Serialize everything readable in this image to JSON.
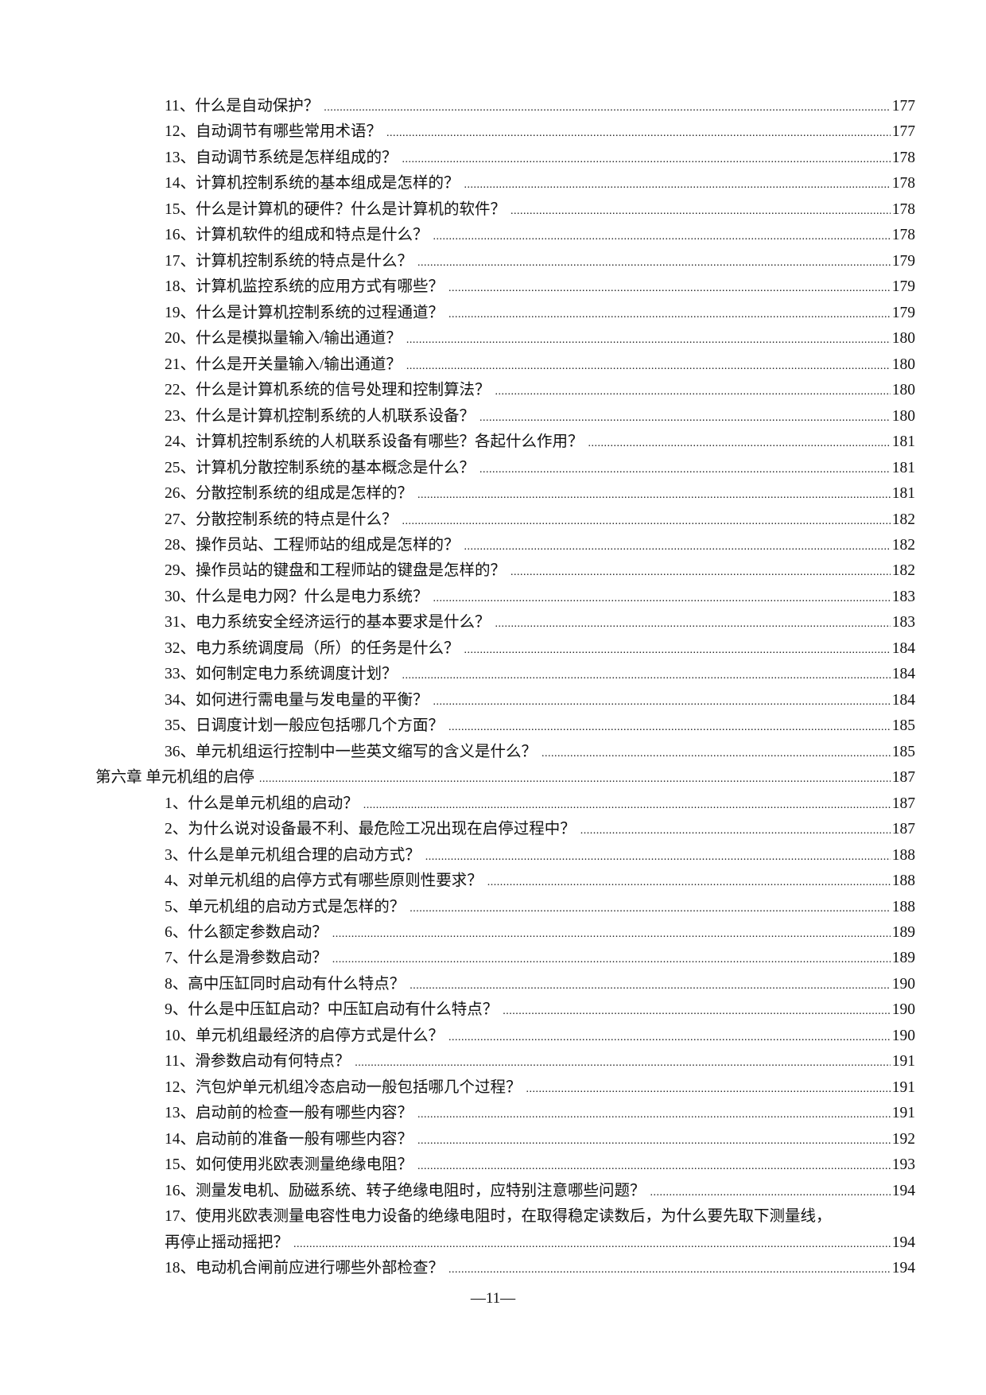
{
  "entries": [
    {
      "type": "item",
      "text": "11、什么是自动保护？",
      "page": "177"
    },
    {
      "type": "item",
      "text": "12、自动调节有哪些常用术语？",
      "page": "177"
    },
    {
      "type": "item",
      "text": "13、自动调节系统是怎样组成的？",
      "page": "178"
    },
    {
      "type": "item",
      "text": "14、计算机控制系统的基本组成是怎样的？",
      "page": "178"
    },
    {
      "type": "item",
      "text": "15、什么是计算机的硬件？什么是计算机的软件？",
      "page": "178"
    },
    {
      "type": "item",
      "text": "16、计算机软件的组成和特点是什么？",
      "page": "178"
    },
    {
      "type": "item",
      "text": "17、计算机控制系统的特点是什么？",
      "page": "179"
    },
    {
      "type": "item",
      "text": "18、计算机监控系统的应用方式有哪些？",
      "page": "179"
    },
    {
      "type": "item",
      "text": "19、什么是计算机控制系统的过程通道？",
      "page": "179"
    },
    {
      "type": "item",
      "text": "20、什么是模拟量输入/输出通道？",
      "page": "180"
    },
    {
      "type": "item",
      "text": "21、什么是开关量输入/输出通道？",
      "page": "180"
    },
    {
      "type": "item",
      "text": "22、什么是计算机系统的信号处理和控制算法？",
      "page": "180"
    },
    {
      "type": "item",
      "text": "23、什么是计算机控制系统的人机联系设备？",
      "page": "180"
    },
    {
      "type": "item",
      "text": "24、计算机控制系统的人机联系设备有哪些？各起什么作用？",
      "page": "181"
    },
    {
      "type": "item",
      "text": "25、计算机分散控制系统的基本概念是什么？",
      "page": "181"
    },
    {
      "type": "item",
      "text": "26、分散控制系统的组成是怎样的？",
      "page": "181"
    },
    {
      "type": "item",
      "text": "27、分散控制系统的特点是什么？",
      "page": "182"
    },
    {
      "type": "item",
      "text": "28、操作员站、工程师站的组成是怎样的？",
      "page": "182"
    },
    {
      "type": "item",
      "text": "29、操作员站的键盘和工程师站的键盘是怎样的？",
      "page": "182"
    },
    {
      "type": "item",
      "text": "30、什么是电力网？什么是电力系统？",
      "page": "183"
    },
    {
      "type": "item",
      "text": "31、电力系统安全经济运行的基本要求是什么？",
      "page": "183"
    },
    {
      "type": "item",
      "text": "32、电力系统调度局（所）的任务是什么？",
      "page": "184"
    },
    {
      "type": "item",
      "text": "33、如何制定电力系统调度计划？",
      "page": "184"
    },
    {
      "type": "item",
      "text": "34、如何进行需电量与发电量的平衡？",
      "page": "184"
    },
    {
      "type": "item",
      "text": "35、日调度计划一般应包括哪几个方面？",
      "page": "185"
    },
    {
      "type": "item",
      "text": "36、单元机组运行控制中一些英文缩写的含义是什么？",
      "page": "185"
    },
    {
      "type": "chapter",
      "text": "第六章  单元机组的启停",
      "page": "187"
    },
    {
      "type": "item",
      "text": "1、什么是单元机组的启动？",
      "page": "187"
    },
    {
      "type": "item",
      "text": "2、为什么说对设备最不利、最危险工况出现在启停过程中？",
      "page": "187"
    },
    {
      "type": "item",
      "text": "3、什么是单元机组合理的启动方式？",
      "page": "188"
    },
    {
      "type": "item",
      "text": "4、对单元机组的启停方式有哪些原则性要求？",
      "page": "188"
    },
    {
      "type": "item",
      "text": "5、单元机组的启动方式是怎样的？",
      "page": "188"
    },
    {
      "type": "item",
      "text": "6、什么额定参数启动？",
      "page": "189"
    },
    {
      "type": "item",
      "text": "7、什么是滑参数启动？",
      "page": "189"
    },
    {
      "type": "item",
      "text": "8、高中压缸同时启动有什么特点？",
      "page": "190"
    },
    {
      "type": "item",
      "text": "9、什么是中压缸启动？中压缸启动有什么特点？",
      "page": "190"
    },
    {
      "type": "item",
      "text": "10、单元机组最经济的启停方式是什么？",
      "page": "190"
    },
    {
      "type": "item",
      "text": "11、滑参数启动有何特点？",
      "page": "191"
    },
    {
      "type": "item",
      "text": "12、汽包炉单元机组冷态启动一般包括哪几个过程？",
      "page": "191"
    },
    {
      "type": "item",
      "text": "13、启动前的检查一般有哪些内容？",
      "page": "191"
    },
    {
      "type": "item",
      "text": "14、启动前的准备一般有哪些内容？",
      "page": "192"
    },
    {
      "type": "item",
      "text": "15、如何使用兆欧表测量绝缘电阻？",
      "page": "193"
    },
    {
      "type": "item",
      "text": "16、测量发电机、励磁系统、转子绝缘电阻时，应特别注意哪些问题？",
      "page": "194"
    },
    {
      "type": "item",
      "text": "17、使用兆欧表测量电容性电力设备的绝缘电阻时，在取得稳定读数后，为什么要先取下测量线，",
      "continuation": "再停止摇动摇把？",
      "page": "194"
    },
    {
      "type": "item",
      "text": "18、电动机合闸前应进行哪些外部检查？",
      "page": "194"
    }
  ],
  "footer": {
    "page_number": "—11—"
  }
}
